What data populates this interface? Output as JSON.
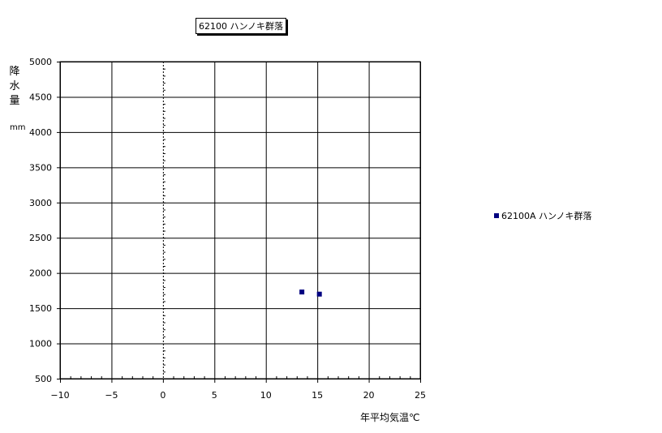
{
  "chart_data": {
    "type": "scatter",
    "title": "62100 ハンノキ群落",
    "xlabel": "年平均気温℃",
    "ylabel": "降水量",
    "yunit": "mm",
    "xlim": [
      -10,
      25
    ],
    "ylim": [
      500,
      5000
    ],
    "xticks": [
      -10,
      -5,
      0,
      5,
      10,
      15,
      20,
      25
    ],
    "yticks": [
      500,
      1000,
      1500,
      2000,
      2500,
      3000,
      3500,
      4000,
      4500,
      5000
    ],
    "grid": true,
    "legend_position": "right",
    "series": [
      {
        "name": "62100A ハンノキ群落",
        "color": "#000080",
        "marker": "square",
        "points": [
          [
            13.5,
            1730
          ],
          [
            15.2,
            1700
          ]
        ]
      }
    ]
  }
}
